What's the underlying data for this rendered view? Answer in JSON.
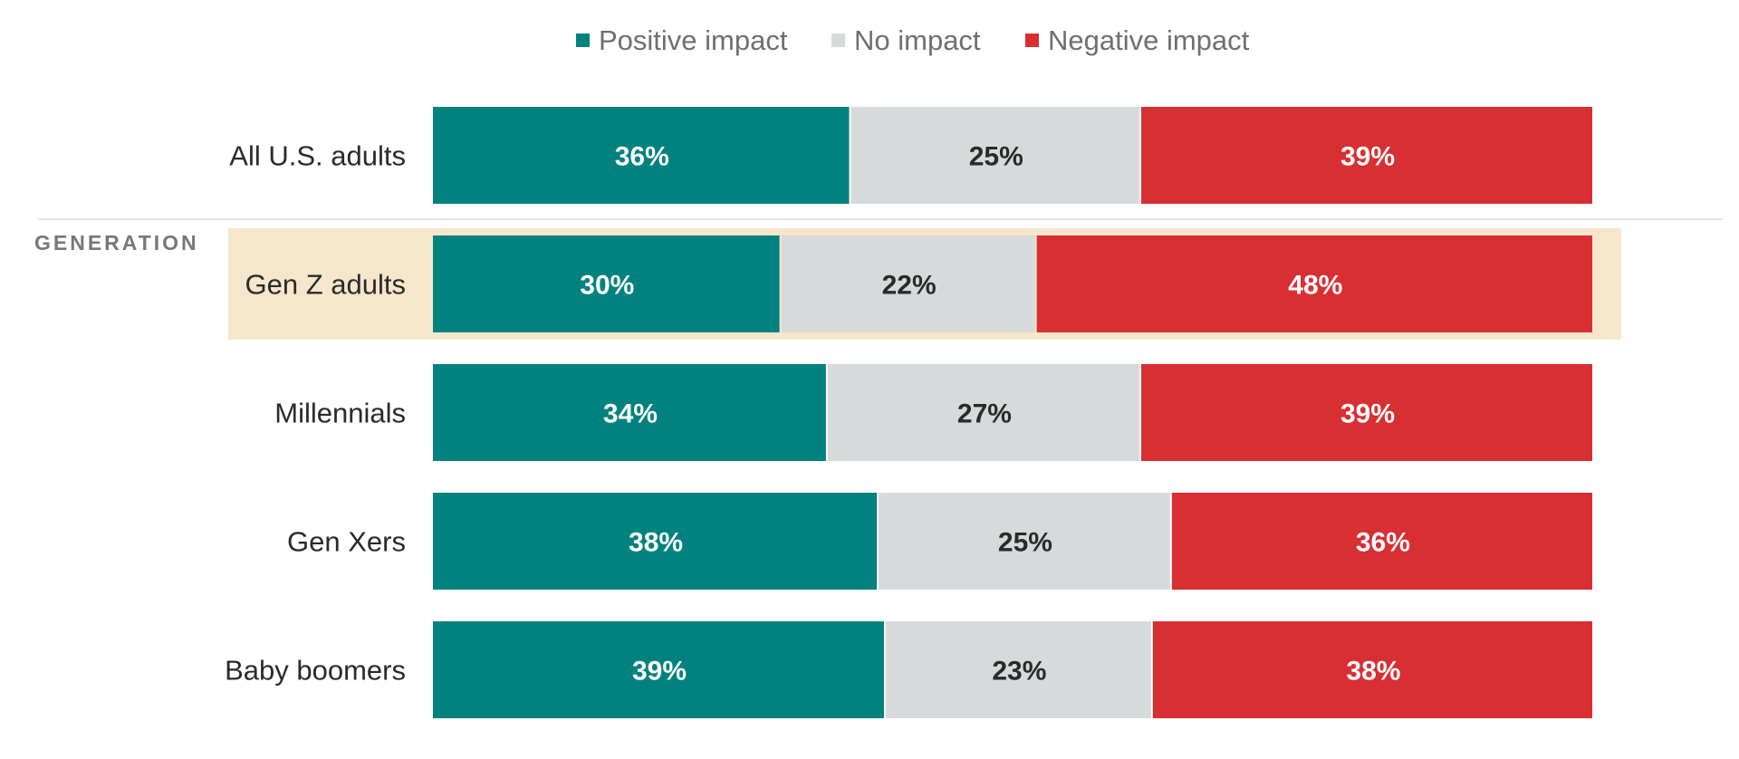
{
  "chart_data": {
    "type": "bar",
    "orientation": "horizontal",
    "stacked": true,
    "percent_labels": true,
    "grid": false,
    "legend_position": "top-center",
    "colors": {
      "positive": "#02827f",
      "none": "#d7dadb",
      "negative": "#d82f33",
      "highlight_band": "#f6e7cc",
      "divider": "#dcdcdc"
    },
    "legend": [
      {
        "key": "positive",
        "label": "Positive impact"
      },
      {
        "key": "none",
        "label": "No impact"
      },
      {
        "key": "negative",
        "label": "Negative impact"
      }
    ],
    "group_label": "GENERATION",
    "highlighted_category": "Gen Z adults",
    "categories": [
      "All U.S. adults",
      "Gen Z adults",
      "Millennials",
      "Gen Xers",
      "Baby boomers"
    ],
    "series": [
      {
        "name": "Positive impact",
        "key": "positive",
        "values": [
          36,
          30,
          34,
          38,
          39
        ]
      },
      {
        "name": "No impact",
        "key": "none",
        "values": [
          25,
          22,
          27,
          25,
          23
        ]
      },
      {
        "name": "Negative impact",
        "key": "negative",
        "values": [
          39,
          48,
          39,
          36,
          38
        ]
      }
    ],
    "value_suffix": "%"
  }
}
